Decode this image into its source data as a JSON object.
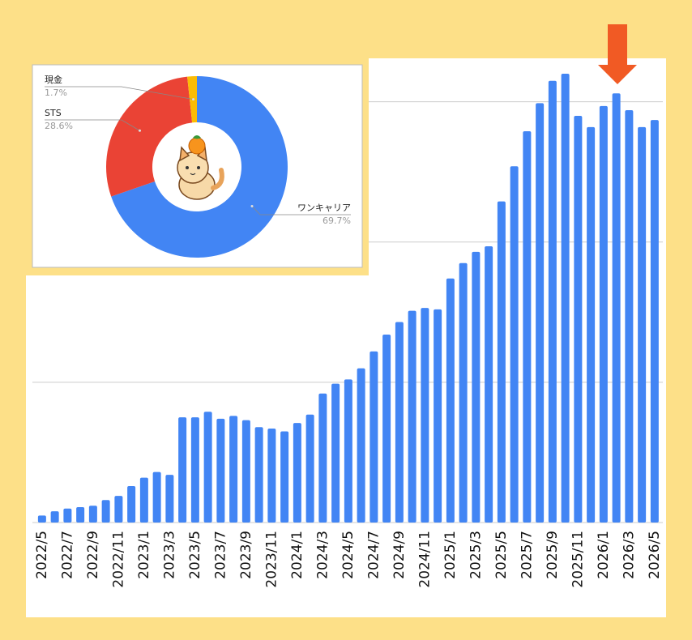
{
  "chart_data": [
    {
      "type": "bar",
      "color": "#4285f4",
      "grid": true,
      "categories": [
        "2022/5",
        null,
        "2022/7",
        null,
        "2022/9",
        null,
        "2022/11",
        null,
        "2023/1",
        null,
        "2023/3",
        null,
        "2023/5",
        null,
        "2023/7",
        null,
        "2023/9",
        null,
        "2023/11",
        null,
        "2024/1",
        null,
        "2024/3",
        null,
        "2024/5",
        null,
        "2024/7",
        null,
        "2024/9",
        null,
        "2024/11",
        null,
        "2025/1",
        null,
        "2025/3",
        null,
        "2025/5",
        null,
        "2025/7",
        null,
        "2025/9",
        null,
        "2025/11",
        null,
        "2026/1",
        null,
        "2026/3",
        null,
        "2026/5"
      ],
      "values": [
        0.05,
        0.08,
        0.1,
        0.11,
        0.12,
        0.16,
        0.19,
        0.26,
        0.32,
        0.36,
        0.34,
        0.75,
        0.75,
        0.79,
        0.74,
        0.76,
        0.73,
        0.68,
        0.67,
        0.65,
        0.71,
        0.77,
        0.92,
        0.99,
        1.02,
        1.1,
        1.22,
        1.34,
        1.43,
        1.51,
        1.53,
        1.52,
        1.74,
        1.85,
        1.93,
        1.97,
        2.29,
        2.54,
        2.79,
        2.99,
        3.15,
        3.2,
        2.9,
        2.82,
        2.97,
        3.06,
        2.94,
        2.82,
        2.87
      ],
      "ylim": [
        0,
        3.31
      ],
      "yticks": [
        0,
        1,
        2,
        3
      ]
    },
    {
      "type": "pie",
      "donut": true,
      "categories": [
        "ワンキャリア",
        "STS",
        "現金"
      ],
      "values": [
        69.7,
        28.6,
        1.7
      ],
      "value_labels": [
        "69.7%",
        "28.6%",
        "1.7%"
      ],
      "colors": [
        "#4285f4",
        "#ea4335",
        "#fbbc04"
      ]
    }
  ]
}
